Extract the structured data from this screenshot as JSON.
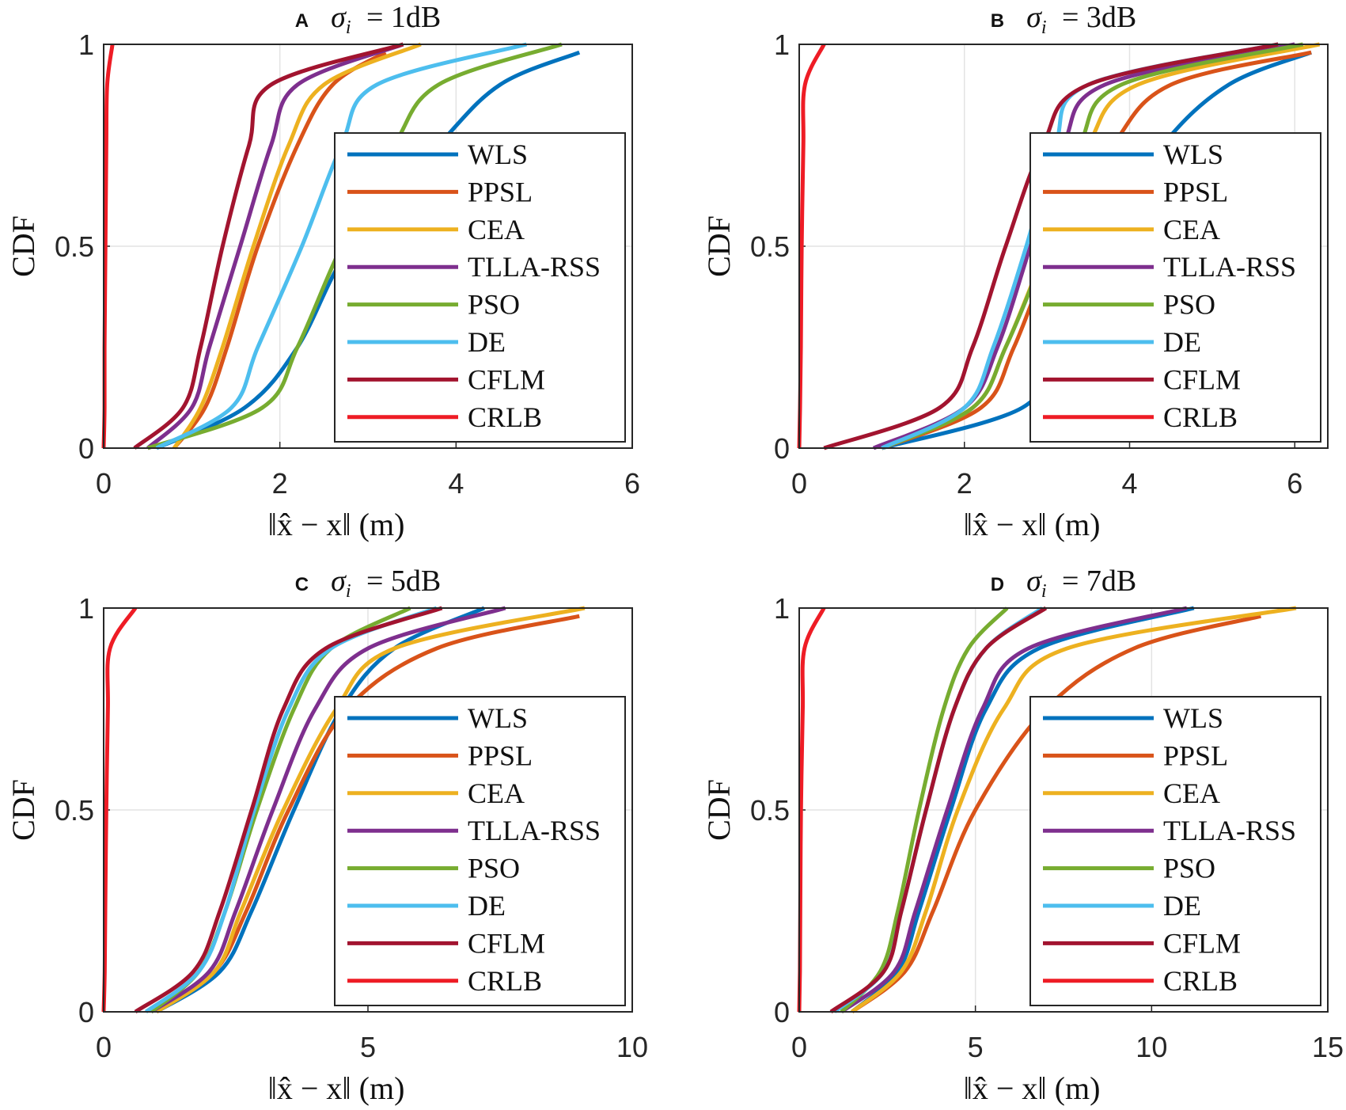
{
  "chart_data": [
    {
      "type": "line",
      "panel_letter": "A",
      "title": {
        "symbol": "σ",
        "sub": "i",
        "value": " = 1dB"
      },
      "xlabel": "‖x̂ − x‖ (m)",
      "ylabel": "CDF",
      "xlim": [
        0,
        6
      ],
      "ylim": [
        0,
        1
      ],
      "xticks": [
        0,
        2,
        4,
        6
      ],
      "xtick_labels": [
        "0",
        "2",
        "4",
        "6"
      ],
      "yticks": [
        0,
        0.5,
        1
      ],
      "ytick_labels": [
        "0",
        "0.5",
        "1"
      ],
      "grid": true,
      "legend_position": "center-right",
      "cdf_levels": [
        0,
        0.1,
        0.25,
        0.5,
        0.75,
        0.9,
        1
      ],
      "series": [
        {
          "name": "WLS",
          "x": [
            0.6,
            1.6,
            2.2,
            2.8,
            3.8,
            4.5,
            5.4
          ],
          "max_cdf": 0.98
        },
        {
          "name": "PPSL",
          "x": [
            0.8,
            1.15,
            1.4,
            1.75,
            2.2,
            2.6,
            3.2
          ],
          "max_cdf": 0.98
        },
        {
          "name": "CEA",
          "x": [
            0.8,
            1.1,
            1.35,
            1.7,
            2.1,
            2.5,
            3.6
          ]
        },
        {
          "name": "TLLA-RSS",
          "x": [
            0.5,
            1.0,
            1.2,
            1.55,
            1.9,
            2.2,
            3.4
          ]
        },
        {
          "name": "PSO",
          "x": [
            0.5,
            1.8,
            2.2,
            2.7,
            3.3,
            3.8,
            5.2
          ]
        },
        {
          "name": "DE",
          "x": [
            0.6,
            1.45,
            1.75,
            2.25,
            2.7,
            3.1,
            4.8
          ]
        },
        {
          "name": "CFLM",
          "x": [
            0.35,
            0.9,
            1.1,
            1.35,
            1.65,
            1.9,
            3.4
          ]
        },
        {
          "name": "CRLB",
          "x": [
            0,
            0.01,
            0.01,
            0.02,
            0.03,
            0.04,
            0.1
          ]
        }
      ]
    },
    {
      "type": "line",
      "panel_letter": "B",
      "title": {
        "symbol": "σ",
        "sub": "i",
        "value": " = 3dB"
      },
      "xlabel": "‖x̂ − x‖ (m)",
      "ylabel": "CDF",
      "xlim": [
        0,
        6.4
      ],
      "ylim": [
        0,
        1
      ],
      "xticks": [
        0,
        2,
        4,
        6
      ],
      "xtick_labels": [
        "0",
        "2",
        "4",
        "6"
      ],
      "yticks": [
        0,
        0.5,
        1
      ],
      "ytick_labels": [
        "0",
        "0.5",
        "1"
      ],
      "grid": true,
      "legend_position": "center-right",
      "cdf_levels": [
        0,
        0.1,
        0.25,
        0.5,
        0.75,
        0.9,
        1
      ],
      "series": [
        {
          "name": "WLS",
          "x": [
            1.0,
            2.7,
            3.1,
            3.6,
            4.4,
            5.2,
            6.2
          ],
          "max_cdf": 0.98
        },
        {
          "name": "PPSL",
          "x": [
            1.0,
            2.2,
            2.6,
            3.1,
            3.8,
            4.5,
            6.2
          ],
          "max_cdf": 0.98
        },
        {
          "name": "CEA",
          "x": [
            1.0,
            2.1,
            2.5,
            3.0,
            3.5,
            4.1,
            6.3
          ]
        },
        {
          "name": "TLLA-RSS",
          "x": [
            0.9,
            2.0,
            2.4,
            2.8,
            3.2,
            3.7,
            6.0
          ]
        },
        {
          "name": "PSO",
          "x": [
            1.0,
            2.1,
            2.5,
            3.0,
            3.4,
            3.9,
            6.1
          ]
        },
        {
          "name": "DE",
          "x": [
            1.0,
            2.0,
            2.35,
            2.75,
            3.1,
            3.5,
            5.8
          ]
        },
        {
          "name": "CFLM",
          "x": [
            0.3,
            1.7,
            2.1,
            2.5,
            2.95,
            3.5,
            5.8
          ]
        },
        {
          "name": "CRLB",
          "x": [
            0,
            0.01,
            0.02,
            0.03,
            0.05,
            0.07,
            0.3
          ]
        }
      ]
    },
    {
      "type": "line",
      "panel_letter": "C",
      "title": {
        "symbol": "σ",
        "sub": "i",
        "value": " = 5dB"
      },
      "xlabel": "‖x̂ − x‖ (m)",
      "ylabel": "CDF",
      "xlim": [
        0,
        10
      ],
      "ylim": [
        0,
        1
      ],
      "xticks": [
        0,
        5,
        10
      ],
      "xtick_labels": [
        "0",
        "5",
        "10"
      ],
      "yticks": [
        0,
        0.5,
        1
      ],
      "ytick_labels": [
        "0",
        "0.5",
        "1"
      ],
      "grid": true,
      "legend_position": "center-right",
      "cdf_levels": [
        0,
        0.1,
        0.25,
        0.5,
        0.75,
        0.9,
        1
      ],
      "series": [
        {
          "name": "WLS",
          "x": [
            1.0,
            2.2,
            2.8,
            3.6,
            4.5,
            5.5,
            7.2
          ]
        },
        {
          "name": "PPSL",
          "x": [
            1.0,
            2.1,
            2.7,
            3.5,
            4.6,
            6.3,
            9.0
          ],
          "max_cdf": 0.98
        },
        {
          "name": "CEA",
          "x": [
            1.0,
            2.1,
            2.6,
            3.4,
            4.4,
            5.5,
            9.1
          ]
        },
        {
          "name": "TLLA-RSS",
          "x": [
            0.9,
            2.0,
            2.5,
            3.2,
            4.0,
            5.0,
            7.6
          ]
        },
        {
          "name": "PSO",
          "x": [
            0.9,
            1.8,
            2.3,
            2.9,
            3.6,
            4.3,
            5.8
          ]
        },
        {
          "name": "DE",
          "x": [
            0.8,
            1.8,
            2.3,
            2.85,
            3.5,
            4.3,
            6.3
          ]
        },
        {
          "name": "CFLM",
          "x": [
            0.6,
            1.7,
            2.2,
            2.8,
            3.4,
            4.2,
            6.4
          ]
        },
        {
          "name": "CRLB",
          "x": [
            0,
            0.02,
            0.03,
            0.05,
            0.08,
            0.12,
            0.6
          ]
        }
      ]
    },
    {
      "type": "line",
      "panel_letter": "D",
      "title": {
        "symbol": "σ",
        "sub": "i",
        "value": " = 7dB"
      },
      "xlabel": "‖x̂ − x‖ (m)",
      "ylabel": "CDF",
      "xlim": [
        0,
        15
      ],
      "ylim": [
        0,
        1
      ],
      "xticks": [
        0,
        5,
        10,
        15
      ],
      "xtick_labels": [
        "0",
        "5",
        "10",
        "15"
      ],
      "yticks": [
        0,
        0.5,
        1
      ],
      "ytick_labels": [
        "0",
        "0.5",
        "1"
      ],
      "grid": true,
      "legend_position": "center-right",
      "cdf_levels": [
        0,
        0.1,
        0.25,
        0.5,
        0.75,
        0.9,
        1
      ],
      "series": [
        {
          "name": "WLS",
          "x": [
            1.5,
            2.8,
            3.4,
            4.3,
            5.3,
            6.8,
            11.2
          ]
        },
        {
          "name": "PPSL",
          "x": [
            1.5,
            3.0,
            3.8,
            5.0,
            7.0,
            9.5,
            13.1
          ],
          "max_cdf": 0.98
        },
        {
          "name": "CEA",
          "x": [
            1.5,
            2.9,
            3.6,
            4.5,
            5.8,
            7.6,
            14.1
          ]
        },
        {
          "name": "TLLA-RSS",
          "x": [
            1.2,
            2.7,
            3.3,
            4.2,
            5.2,
            6.5,
            11.0
          ]
        },
        {
          "name": "PSO",
          "x": [
            1.2,
            2.3,
            2.8,
            3.4,
            4.1,
            4.8,
            5.9
          ]
        },
        {
          "name": "DE",
          "x": [
            1.0,
            2.4,
            2.9,
            3.6,
            4.4,
            5.3,
            6.9
          ]
        },
        {
          "name": "CFLM",
          "x": [
            0.9,
            2.4,
            2.9,
            3.6,
            4.4,
            5.3,
            7.0
          ]
        },
        {
          "name": "CRLB",
          "x": [
            0,
            0.02,
            0.03,
            0.05,
            0.1,
            0.15,
            0.7
          ]
        }
      ]
    }
  ],
  "series_colors": {
    "WLS": "#0072BD",
    "PPSL": "#D95319",
    "CEA": "#EDB120",
    "TLLA-RSS": "#7E2F8E",
    "PSO": "#77AC30",
    "DE": "#4DBEEE",
    "CFLM": "#A2142F",
    "CRLB": "#EE1C25"
  }
}
